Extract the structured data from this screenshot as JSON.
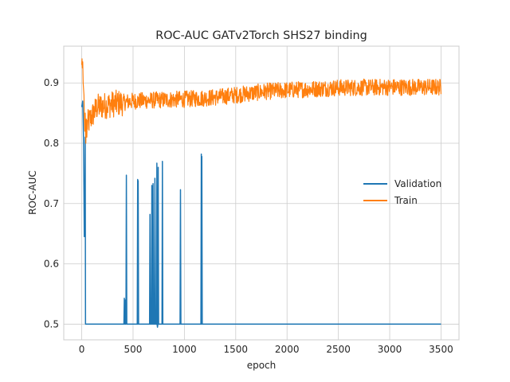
{
  "chart_data": {
    "type": "line",
    "title": "ROC-AUC GATv2Torch SHS27 binding",
    "xlabel": "epoch",
    "ylabel": "ROC-AUC",
    "xlim": [
      -175,
      3675
    ],
    "ylim": [
      0.474,
      0.961
    ],
    "xticks": [
      0,
      500,
      1000,
      1500,
      2000,
      2500,
      3000,
      3500
    ],
    "yticks": [
      0.5,
      0.6,
      0.7,
      0.8,
      0.9
    ],
    "grid": true,
    "legend_position": "center-right",
    "series": [
      {
        "name": "Validation",
        "color": "#1f77b4",
        "baseline": 0.5,
        "early_points": [
          [
            0,
            0.86
          ],
          [
            5,
            0.865
          ],
          [
            10,
            0.87
          ],
          [
            14,
            0.84
          ],
          [
            18,
            0.8
          ],
          [
            22,
            0.72
          ],
          [
            25,
            0.645
          ],
          [
            28,
            0.7
          ],
          [
            31,
            0.66
          ],
          [
            34,
            0.81
          ],
          [
            37,
            0.5
          ]
        ],
        "spikes": [
          [
            415,
            0.543
          ],
          [
            425,
            0.54
          ],
          [
            435,
            0.747
          ],
          [
            545,
            0.74
          ],
          [
            550,
            0.738
          ],
          [
            665,
            0.682
          ],
          [
            683,
            0.73
          ],
          [
            695,
            0.733
          ],
          [
            713,
            0.742
          ],
          [
            732,
            0.767
          ],
          [
            738,
            0.495
          ],
          [
            745,
            0.76
          ],
          [
            786,
            0.77
          ],
          [
            962,
            0.723
          ],
          [
            1165,
            0.782
          ],
          [
            1170,
            0.778
          ]
        ],
        "end_x": 3500
      },
      {
        "name": "Train",
        "color": "#ff7f0e",
        "early_points": [
          [
            0,
            0.93
          ],
          [
            3,
            0.94
          ],
          [
            6,
            0.925
          ],
          [
            10,
            0.935
          ],
          [
            14,
            0.9
          ],
          [
            18,
            0.89
          ],
          [
            22,
            0.88
          ],
          [
            26,
            0.84
          ],
          [
            30,
            0.82
          ],
          [
            34,
            0.85
          ],
          [
            40,
            0.8
          ],
          [
            45,
            0.84
          ],
          [
            50,
            0.81
          ]
        ],
        "trend": [
          [
            50,
            0.83
          ],
          [
            150,
            0.86
          ],
          [
            300,
            0.865
          ],
          [
            500,
            0.87
          ],
          [
            800,
            0.872
          ],
          [
            1000,
            0.873
          ],
          [
            1300,
            0.876
          ],
          [
            1500,
            0.88
          ],
          [
            1800,
            0.886
          ],
          [
            2000,
            0.888
          ],
          [
            2500,
            0.892
          ],
          [
            3000,
            0.893
          ],
          [
            3500,
            0.893
          ]
        ],
        "noise_amplitude": 0.014,
        "end_x": 3500
      }
    ]
  }
}
